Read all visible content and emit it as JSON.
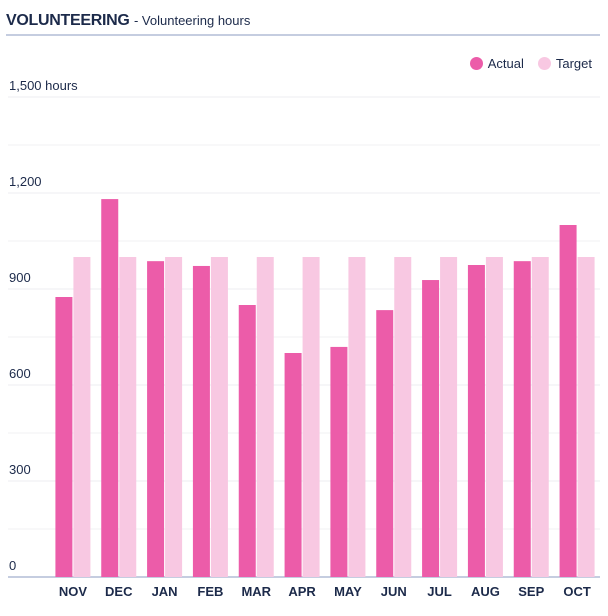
{
  "header": {
    "title": "VOLUNTEERING",
    "subtitle": "- Volunteering hours"
  },
  "chart_data": {
    "type": "bar",
    "categories": [
      "NOV",
      "DEC",
      "JAN",
      "FEB",
      "MAR",
      "APR",
      "MAY",
      "JUN",
      "JUL",
      "AUG",
      "SEP",
      "OCT"
    ],
    "series": [
      {
        "name": "Actual",
        "color": "#ec5ca9",
        "values": [
          875,
          1181,
          987,
          972,
          850,
          700,
          719,
          834,
          928,
          975,
          987,
          1100
        ]
      },
      {
        "name": "Target",
        "color": "#f8c8e2",
        "values": [
          1000,
          1000,
          1000,
          1000,
          1000,
          1000,
          1000,
          1000,
          1000,
          1000,
          1000,
          1000
        ]
      }
    ],
    "ylim": [
      0,
      1500
    ],
    "yticks": [
      {
        "value": 0,
        "label": "0"
      },
      {
        "value": 300,
        "label": "300"
      },
      {
        "value": 600,
        "label": "600"
      },
      {
        "value": 900,
        "label": "900"
      },
      {
        "value": 1200,
        "label": "1,200"
      },
      {
        "value": 1500,
        "label": "1,500 hours"
      }
    ],
    "minor_gridlines": [
      150,
      450,
      750,
      1050,
      1350
    ],
    "grid": true,
    "legend_position": "top-right"
  }
}
